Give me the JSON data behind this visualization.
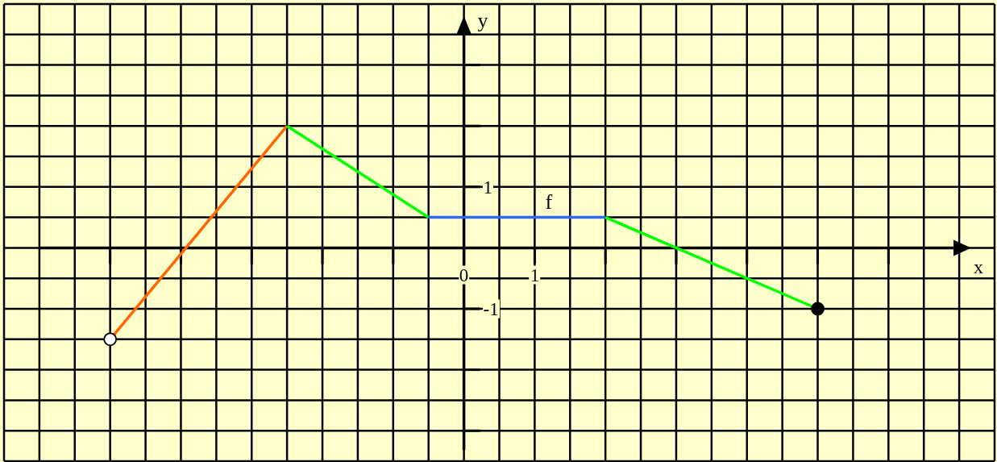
{
  "chart_data": {
    "type": "line",
    "xlabel": "x",
    "ylabel": "y",
    "xlim": [
      -6.5,
      7.5
    ],
    "ylim": [
      -3.5,
      4
    ],
    "xticks": [
      {
        "value": -5,
        "label": null
      },
      {
        "value": -4,
        "label": null
      },
      {
        "value": -3,
        "label": null
      },
      {
        "value": -2,
        "label": null
      },
      {
        "value": -1,
        "label": null
      },
      0,
      1,
      {
        "value": 2,
        "label": null
      },
      {
        "value": 3,
        "label": null
      },
      {
        "value": 4,
        "label": null
      },
      {
        "value": 5,
        "label": null
      },
      {
        "value": 6,
        "label": null
      }
    ],
    "yticks": [
      {
        "value": -3,
        "label": null
      },
      {
        "value": -2,
        "label": null
      },
      -1,
      1,
      {
        "value": 2,
        "label": null
      },
      {
        "value": 3,
        "label": null
      }
    ],
    "grid": true,
    "series": [
      {
        "color": "#ff6600",
        "x": [
          -5,
          -2.5
        ],
        "values": [
          -1.5,
          2
        ]
      },
      {
        "color": "#00ff00",
        "x": [
          -2.5,
          -0.5
        ],
        "values": [
          2,
          0.5
        ]
      },
      {
        "name": "f",
        "color": "#3366ff",
        "x": [
          -0.5,
          2
        ],
        "values": [
          0.5,
          0.5
        ]
      },
      {
        "color": "#00ff00",
        "x": [
          2,
          5
        ],
        "values": [
          0.5,
          -1
        ]
      },
      {
        "type": "scatter",
        "color": "#ffffff",
        "marker": "circle",
        "x": [
          -5
        ],
        "values": [
          -1.5
        ]
      },
      {
        "type": "scatter",
        "color": "#000000",
        "marker": "circle",
        "x": [
          5
        ],
        "values": [
          -1
        ]
      }
    ]
  }
}
